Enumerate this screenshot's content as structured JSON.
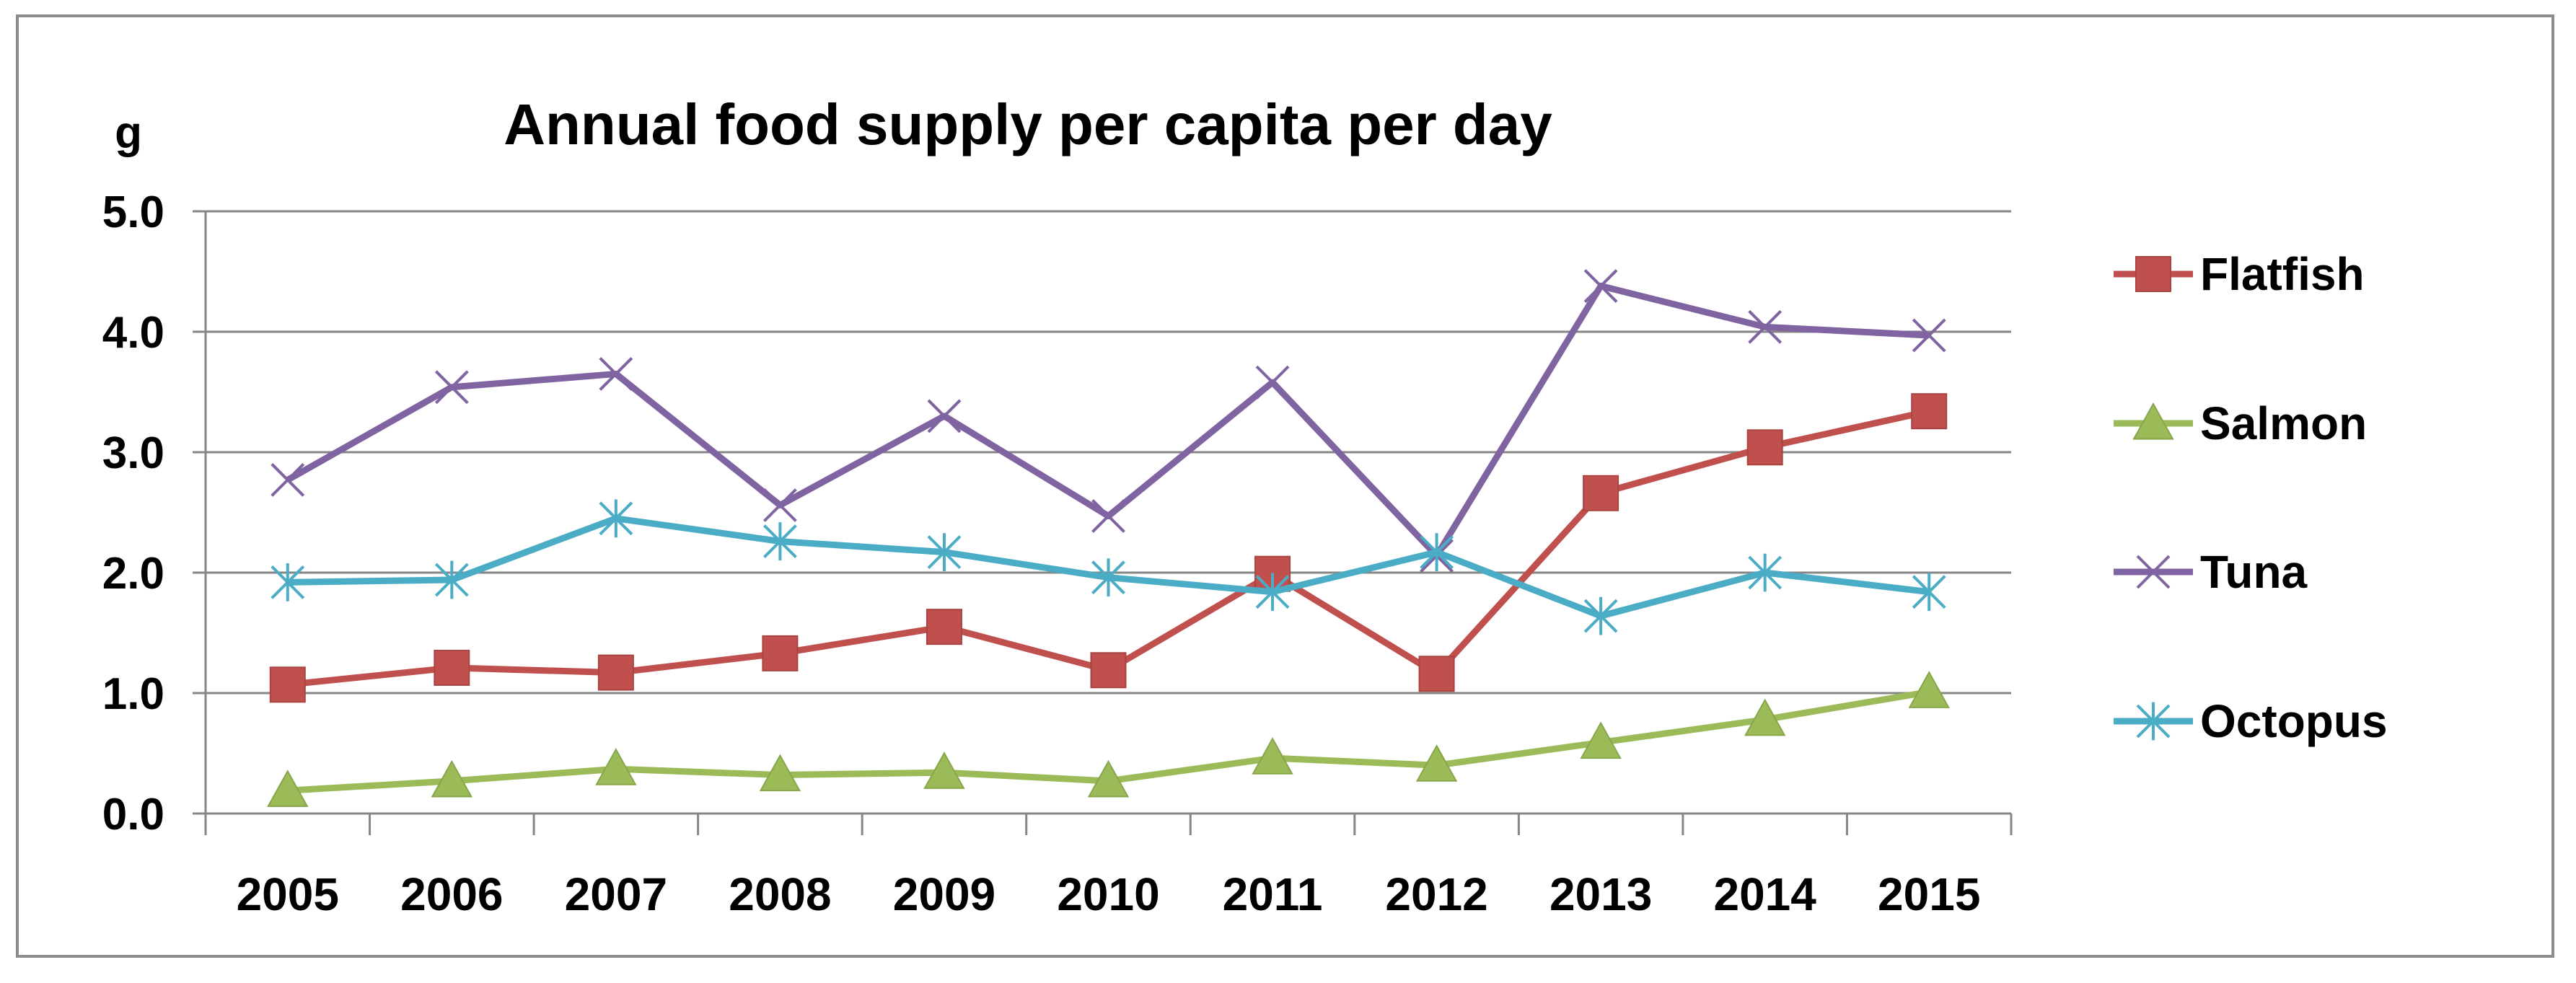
{
  "chart_data": {
    "type": "line",
    "title": "Annual food supply per capita per day",
    "ylabel": "g",
    "xlabel": "",
    "ylim": [
      0.0,
      5.0
    ],
    "yticks": [
      "0.0",
      "1.0",
      "2.0",
      "3.0",
      "4.0",
      "5.0"
    ],
    "grid": true,
    "legend_position": "right",
    "categories": [
      "2005",
      "2006",
      "2007",
      "2008",
      "2009",
      "2010",
      "2011",
      "2012",
      "2013",
      "2014",
      "2015"
    ],
    "series": [
      {
        "name": "Flatfish",
        "marker": "square",
        "color": "#c0504d",
        "values": [
          1.07,
          1.21,
          1.17,
          1.33,
          1.55,
          1.19,
          1.99,
          1.16,
          2.66,
          3.04,
          3.34
        ]
      },
      {
        "name": "Salmon",
        "marker": "triangle",
        "color": "#9bbb59",
        "values": [
          0.19,
          0.27,
          0.37,
          0.32,
          0.34,
          0.27,
          0.46,
          0.4,
          0.59,
          0.78,
          1.01
        ]
      },
      {
        "name": "Tuna",
        "marker": "x",
        "color": "#8064a2",
        "values": [
          2.77,
          3.54,
          3.65,
          2.56,
          3.3,
          2.47,
          3.58,
          2.14,
          4.38,
          4.04,
          3.97
        ]
      },
      {
        "name": "Octopus",
        "marker": "star",
        "color": "#4bacc6",
        "values": [
          1.92,
          1.94,
          2.45,
          2.26,
          2.17,
          1.96,
          1.84,
          2.17,
          1.64,
          2.0,
          1.84
        ]
      }
    ]
  }
}
